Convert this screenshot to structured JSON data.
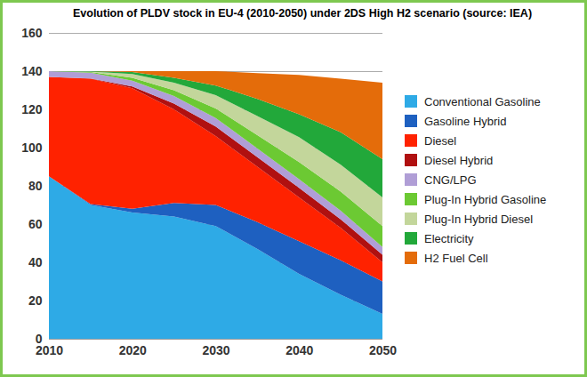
{
  "chart_data": {
    "type": "area",
    "title": "Evolution of PLDV stock in EU-4 (2010-2050) under 2DS High H2 scenario (source: IEA)",
    "x": [
      2010,
      2015,
      2020,
      2025,
      2030,
      2035,
      2040,
      2045,
      2050
    ],
    "series": [
      {
        "name": "Conventional Gasoline",
        "color": "#2eaae6",
        "values": [
          85,
          70,
          66,
          64,
          59,
          47,
          34,
          23,
          13
        ]
      },
      {
        "name": "Gasoline Hybrid",
        "color": "#1e60c0",
        "values": [
          0,
          0.5,
          2,
          7,
          11,
          14,
          17,
          18,
          17
        ]
      },
      {
        "name": "Diesel",
        "color": "#ff2200",
        "values": [
          52,
          65.5,
          63,
          49,
          36,
          29,
          23,
          17,
          10
        ]
      },
      {
        "name": "Diesel Hybrid",
        "color": "#b01010",
        "values": [
          0,
          0.2,
          1,
          3,
          5,
          5,
          5,
          4.5,
          4
        ]
      },
      {
        "name": "CNG/LPG",
        "color": "#b09ed6",
        "values": [
          3,
          3,
          3,
          4,
          4.5,
          4.5,
          4.5,
          4.5,
          4
        ]
      },
      {
        "name": "Plug-In Hybrid Gasoline",
        "color": "#6cc933",
        "values": [
          0,
          0.3,
          1.5,
          3,
          5,
          7,
          9,
          10,
          11
        ]
      },
      {
        "name": "Plug-In Hybrid Diesel",
        "color": "#c3d69b",
        "values": [
          0,
          0.3,
          2,
          4,
          7,
          10,
          13,
          14,
          15
        ]
      },
      {
        "name": "Electricity",
        "color": "#22a83a",
        "values": [
          0,
          0.2,
          1,
          2.5,
          5,
          9,
          12,
          17,
          20
        ]
      },
      {
        "name": "H2 Fuel Cell",
        "color": "#e46c0a",
        "values": [
          0,
          0,
          0.5,
          3.5,
          7.5,
          13.5,
          20.5,
          28,
          40
        ]
      }
    ],
    "xlim": [
      2010,
      2050
    ],
    "xticks": [
      2010,
      2020,
      2030,
      2040,
      2050
    ],
    "ylim": [
      0,
      160
    ],
    "yticks": [
      0,
      20,
      40,
      60,
      80,
      100,
      120,
      140,
      160
    ],
    "stacked": true,
    "grid": true,
    "legend": "right"
  }
}
